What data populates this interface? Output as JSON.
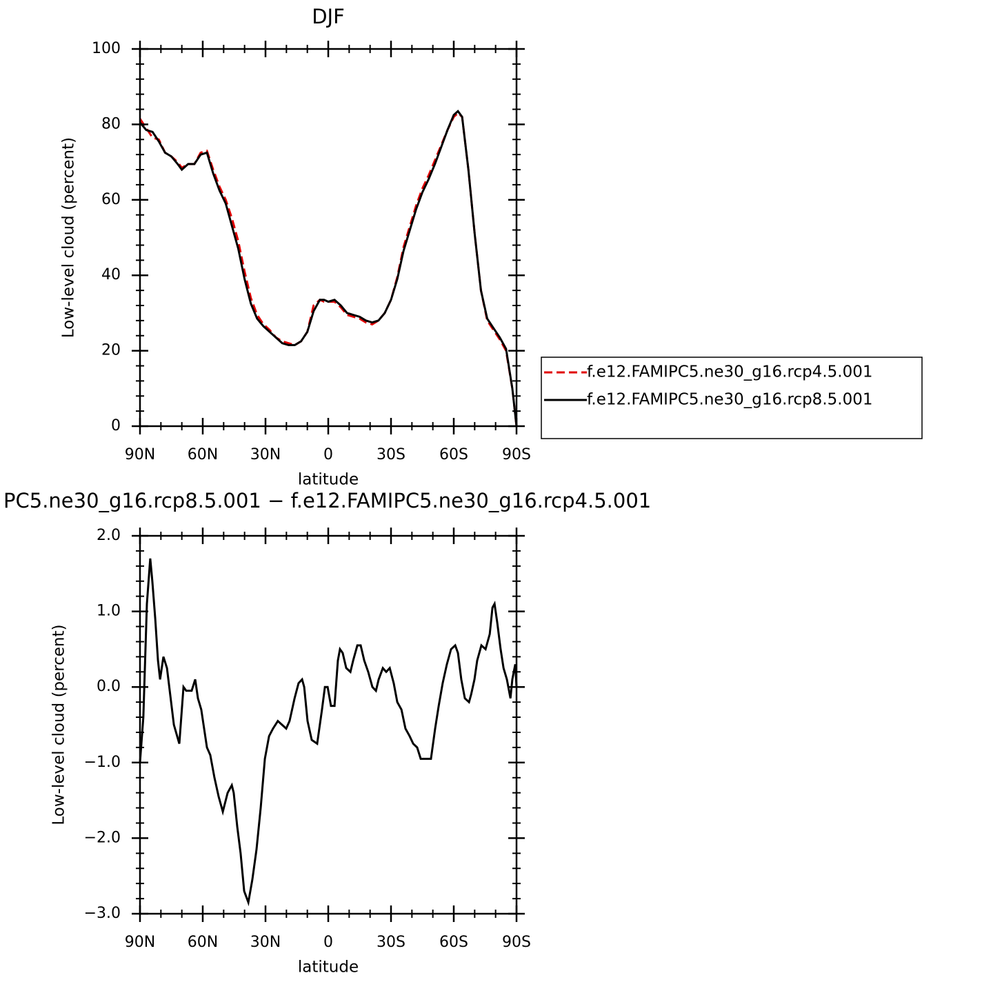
{
  "chart_data": [
    {
      "type": "line",
      "title": "DJF",
      "xlabel": "latitude",
      "ylabel": "Low-level cloud (percent)",
      "xlim": [
        90,
        -90
      ],
      "ylim": [
        0,
        100
      ],
      "xticks": [
        {
          "value": 90,
          "label": "90N"
        },
        {
          "value": 60,
          "label": "60N"
        },
        {
          "value": 30,
          "label": "30N"
        },
        0,
        {
          "value": -30,
          "label": "30S"
        },
        {
          "value": -60,
          "label": "60S"
        },
        {
          "value": -90,
          "label": "90S"
        }
      ],
      "yticks": [
        0,
        20,
        40,
        60,
        80,
        100
      ],
      "legend": "right",
      "series": [
        {
          "name": "f.e12.FAMIPC5.ne30_g16.rcp4.5.001",
          "color": "#e00000",
          "dash": true,
          "x": [
            90,
            87,
            84,
            81,
            78,
            75,
            72,
            70,
            67,
            64,
            61,
            58,
            55,
            52,
            49,
            46,
            43,
            40,
            37,
            34,
            31,
            28,
            25,
            22,
            19,
            16,
            13,
            10,
            7,
            4,
            2,
            0,
            -3,
            -6,
            -9,
            -12,
            -15,
            -18,
            -21,
            -24,
            -27,
            -30,
            -33,
            -36,
            -39,
            -42,
            -45,
            -48,
            -51,
            -54,
            -57,
            -60,
            -62,
            -64,
            -67,
            -70,
            -73,
            -76,
            -79,
            -82,
            -85,
            -88,
            -90
          ],
          "values": [
            81.5,
            79,
            76.5,
            76,
            72.5,
            71.5,
            70,
            68.5,
            69.5,
            69.5,
            72.5,
            73,
            68,
            63.5,
            60,
            55,
            49,
            41,
            34,
            29.5,
            27,
            25.5,
            23.5,
            22.5,
            22,
            21.5,
            22.5,
            25,
            32,
            33.5,
            33,
            33,
            33,
            31.5,
            29.5,
            29,
            28.5,
            27.5,
            27,
            28,
            30,
            33.5,
            39.5,
            47.5,
            53,
            58.5,
            63,
            66.5,
            70.5,
            74.5,
            78.5,
            82,
            83,
            82,
            68,
            51,
            36,
            28,
            25.5,
            23,
            20,
            10,
            0
          ]
        },
        {
          "name": "f.e12.FAMIPC5.ne30_g16.rcp8.5.001",
          "color": "#000000",
          "dash": false,
          "x": [
            90,
            87,
            84,
            81,
            78,
            75,
            72,
            70,
            67,
            64,
            61,
            58,
            55,
            52,
            49,
            46,
            43,
            40,
            37,
            34,
            31,
            28,
            25,
            22,
            19,
            16,
            13,
            10,
            7,
            4,
            2,
            0,
            -3,
            -6,
            -9,
            -12,
            -15,
            -18,
            -21,
            -24,
            -27,
            -30,
            -33,
            -36,
            -39,
            -42,
            -45,
            -48,
            -51,
            -54,
            -57,
            -60,
            -62,
            -64,
            -67,
            -70,
            -73,
            -76,
            -79,
            -82,
            -85,
            -88,
            -90
          ],
          "values": [
            80.5,
            78.5,
            78,
            75.5,
            72.5,
            71.5,
            69.5,
            68,
            69.5,
            69.5,
            72,
            72.5,
            67,
            62.5,
            59,
            53,
            47,
            39,
            32.5,
            28.5,
            26.5,
            25,
            23.5,
            22,
            21.5,
            21.5,
            22.5,
            25,
            30.5,
            33.5,
            33.5,
            33,
            33.5,
            32,
            30,
            29.5,
            29,
            28,
            27.5,
            28,
            30,
            33.5,
            39,
            46.5,
            52,
            57.5,
            62,
            65.5,
            69.5,
            74,
            78.5,
            82.5,
            83.5,
            82,
            68,
            51,
            36,
            28.5,
            26,
            23.5,
            20.5,
            10,
            0
          ]
        }
      ]
    },
    {
      "type": "line",
      "title": "PC5.ne30_g16.rcp8.5.001 − f.e12.FAMIPC5.ne30_g16.rcp4.5.001",
      "xlabel": "latitude",
      "ylabel": "Low-level cloud (percent)",
      "xlim": [
        90,
        -90
      ],
      "ylim": [
        -3,
        2
      ],
      "xticks": [
        {
          "value": 90,
          "label": "90N"
        },
        {
          "value": 60,
          "label": "60N"
        },
        {
          "value": 30,
          "label": "30N"
        },
        0,
        {
          "value": -30,
          "label": "30S"
        },
        {
          "value": -60,
          "label": "60S"
        },
        {
          "value": -90,
          "label": "90S"
        }
      ],
      "yticks": [
        {
          "value": -3,
          "label": "−3.0"
        },
        {
          "value": -2,
          "label": "−2.0"
        },
        {
          "value": -1,
          "label": "−1.0"
        },
        {
          "value": 0,
          "label": "0.0"
        },
        {
          "value": 1,
          "label": "1.0"
        },
        {
          "value": 2,
          "label": "2.0"
        }
      ],
      "color": "#000000",
      "x": [
        90,
        88.4,
        86.7,
        85.1,
        84.1,
        82.7,
        81.4,
        80.4,
        78.8,
        77.1,
        73.8,
        71.2,
        69.2,
        67.9,
        65.3,
        63.6,
        62.3,
        60.7,
        58.0,
        56.4,
        54.4,
        52.4,
        50.4,
        48.1,
        46.1,
        45.2,
        43.5,
        41.9,
        40.2,
        38.2,
        36.3,
        34.3,
        32.3,
        30.3,
        28.3,
        26.4,
        24.1,
        22.1,
        20.1,
        18.5,
        16.1,
        14.2,
        12.5,
        11.5,
        9.9,
        7.9,
        5.3,
        3.0,
        1.6,
        0.3,
        -1.3,
        -3.0,
        -4.6,
        -5.6,
        -6.9,
        -8.6,
        -10.6,
        -11.9,
        -13.9,
        -15.5,
        -17.2,
        -19.1,
        -21.1,
        -22.8,
        -24.1,
        -26.1,
        -27.7,
        -29.4,
        -31.3,
        -33.0,
        -35.0,
        -36.9,
        -38.9,
        -40.6,
        -42.5,
        -44.2,
        -45.8,
        -47.5,
        -49.1,
        -51.1,
        -52.8,
        -54.7,
        -56.7,
        -58.7,
        -60.7,
        -62.0,
        -63.6,
        -65.3,
        -67.3,
        -68.3,
        -69.9,
        -71.2,
        -73.2,
        -75.2,
        -77.2,
        -78.5,
        -79.5,
        -80.8,
        -82.4,
        -83.8,
        -85.4,
        -87.1,
        -88.0,
        -89.4,
        -90
      ],
      "values": [
        -1.0,
        -0.4,
        1.1,
        1.7,
        1.4,
        0.9,
        0.35,
        0.1,
        0.4,
        0.25,
        -0.5,
        -0.75,
        0,
        -0.05,
        -0.05,
        0.1,
        -0.15,
        -0.3,
        -0.8,
        -0.9,
        -1.2,
        -1.45,
        -1.65,
        -1.4,
        -1.3,
        -1.4,
        -1.85,
        -2.2,
        -2.7,
        -2.85,
        -2.55,
        -2.15,
        -1.6,
        -0.95,
        -0.65,
        -0.55,
        -0.45,
        -0.5,
        -0.55,
        -0.45,
        -0.15,
        0.05,
        0.1,
        0,
        -0.45,
        -0.7,
        -0.75,
        -0.3,
        0.0,
        0.0,
        -0.25,
        -0.25,
        0.35,
        0.5,
        0.45,
        0.25,
        0.2,
        0.35,
        0.55,
        0.55,
        0.35,
        0.2,
        0.0,
        -0.05,
        0.1,
        0.25,
        0.2,
        0.25,
        0.05,
        -0.2,
        -0.3,
        -0.55,
        -0.65,
        -0.75,
        -0.8,
        -0.95,
        -0.95,
        -0.95,
        -0.95,
        -0.55,
        -0.25,
        0.05,
        0.3,
        0.5,
        0.55,
        0.45,
        0.1,
        -0.15,
        -0.2,
        -0.1,
        0.1,
        0.35,
        0.55,
        0.5,
        0.7,
        1.05,
        1.1,
        0.85,
        0.5,
        0.25,
        0.1,
        -0.15,
        0.1,
        0.3,
        0.0
      ]
    }
  ]
}
